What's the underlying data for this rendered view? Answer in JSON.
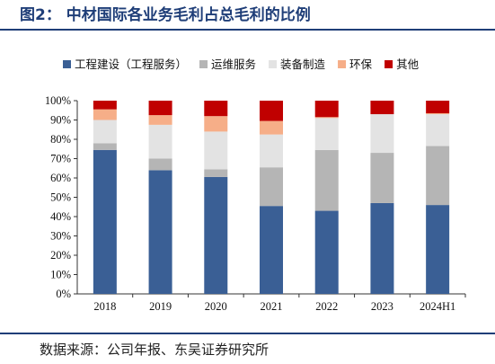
{
  "figure": {
    "title": "图2：  中材国际各业务毛利占总毛利的比例",
    "source": "数据来源：公司年报、东吴证券研究所"
  },
  "chart_data": {
    "type": "bar",
    "stacked": true,
    "categories": [
      "2018",
      "2019",
      "2020",
      "2021",
      "2022",
      "2023",
      "2024H1"
    ],
    "series": [
      {
        "name": "工程建设（工程服务）",
        "color": "#3a5f95",
        "values": [
          74.5,
          64.0,
          60.5,
          45.5,
          43.0,
          47.0,
          46.0
        ]
      },
      {
        "name": "运维服务",
        "color": "#b5b5b5",
        "values": [
          3.5,
          6.0,
          4.0,
          20.0,
          31.5,
          26.0,
          30.5
        ]
      },
      {
        "name": "装备制造",
        "color": "#e3e3e3",
        "values": [
          12.0,
          17.5,
          19.5,
          17.0,
          16.5,
          20.0,
          16.5
        ]
      },
      {
        "name": "环保",
        "color": "#f6ae88",
        "values": [
          5.5,
          5.0,
          8.0,
          7.0,
          0.5,
          0.0,
          0.5
        ]
      },
      {
        "name": "其他",
        "color": "#c00000",
        "values": [
          4.5,
          7.5,
          8.0,
          10.5,
          8.5,
          7.0,
          6.5
        ]
      }
    ],
    "ylim": [
      0,
      100
    ],
    "yticks": [
      "0%",
      "10%",
      "20%",
      "30%",
      "40%",
      "50%",
      "60%",
      "70%",
      "80%",
      "90%",
      "100%"
    ],
    "legend_position": "top",
    "grid": false
  }
}
